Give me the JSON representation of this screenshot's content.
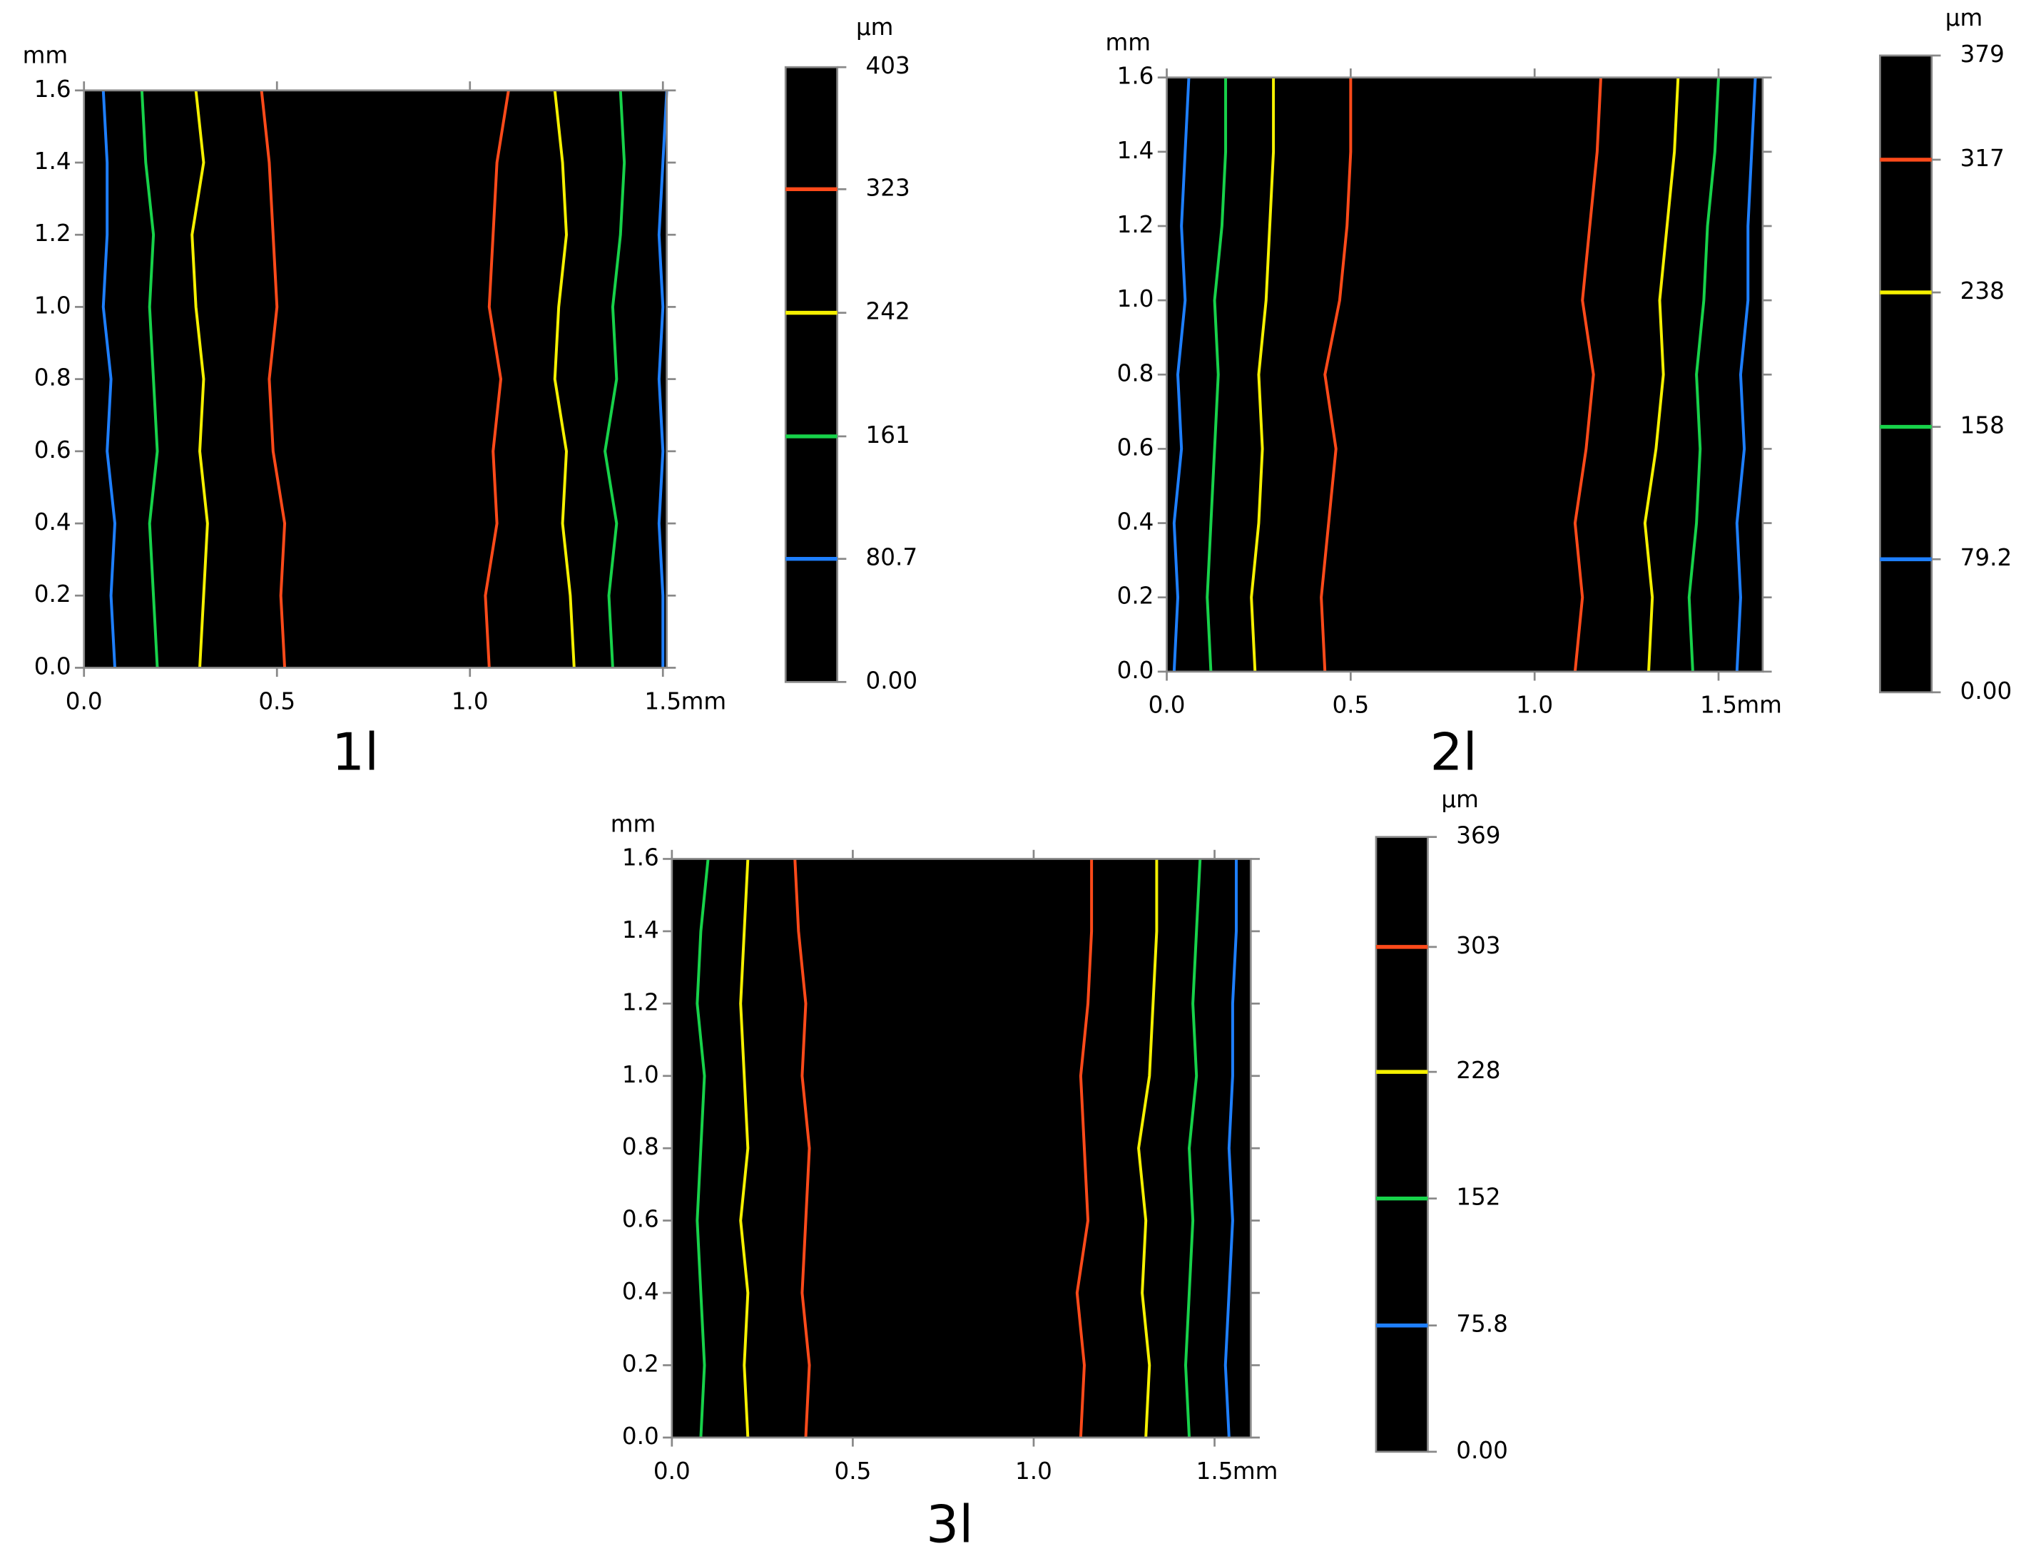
{
  "chart_data": [
    {
      "type": "contour",
      "title": "1l",
      "xlabel": "mm",
      "ylabel": "mm",
      "xlim": [
        0,
        1.51
      ],
      "ylim": [
        0,
        1.6
      ],
      "xticks": [
        {
          "value": 0,
          "label": "0.0"
        },
        0.5,
        {
          "value": 1,
          "label": "1.0"
        },
        1.5
      ],
      "yticks": [
        {
          "value": 0,
          "label": "0.0"
        },
        0.2,
        0.4,
        0.6,
        0.8,
        {
          "value": 1,
          "label": "1.0"
        },
        1.2,
        1.4,
        1.6
      ],
      "colorbar": {
        "label": "µm",
        "clim": [
          0,
          403
        ],
        "ticks": [
          {
            "value": 0,
            "label": "0.00"
          },
          80.7,
          161,
          242,
          323,
          403
        ],
        "tick_colors": [
          null,
          "#1e7fff",
          "#17d24a",
          "#f5f000",
          "#ff4a1a",
          null
        ]
      },
      "contours": [
        {
          "color": "#1e7fff",
          "x": [
            0.08,
            0.07,
            0.08,
            0.06,
            0.07,
            0.05,
            0.06,
            0.06,
            0.05
          ],
          "y": [
            0,
            0.2,
            0.4,
            0.6,
            0.8,
            1,
            1.2,
            1.4,
            1.6
          ]
        },
        {
          "color": "#17d24a",
          "x": [
            0.19,
            0.18,
            0.17,
            0.19,
            0.18,
            0.17,
            0.18,
            0.16,
            0.15
          ],
          "y": [
            0,
            0.2,
            0.4,
            0.6,
            0.8,
            1,
            1.2,
            1.4,
            1.6
          ]
        },
        {
          "color": "#f5f000",
          "x": [
            0.3,
            0.31,
            0.32,
            0.3,
            0.31,
            0.29,
            0.28,
            0.31,
            0.29
          ],
          "y": [
            0,
            0.2,
            0.4,
            0.6,
            0.8,
            1,
            1.2,
            1.4,
            1.6
          ]
        },
        {
          "color": "#ff4a1a",
          "x": [
            0.52,
            0.51,
            0.52,
            0.49,
            0.48,
            0.5,
            0.49,
            0.48,
            0.46
          ],
          "y": [
            0,
            0.2,
            0.4,
            0.6,
            0.8,
            1,
            1.2,
            1.4,
            1.6
          ]
        },
        {
          "color": "#ff4a1a",
          "x": [
            1.05,
            1.04,
            1.07,
            1.06,
            1.08,
            1.05,
            1.06,
            1.07,
            1.1
          ],
          "y": [
            0,
            0.2,
            0.4,
            0.6,
            0.8,
            1,
            1.2,
            1.4,
            1.6
          ]
        },
        {
          "color": "#f5f000",
          "x": [
            1.27,
            1.26,
            1.24,
            1.25,
            1.22,
            1.23,
            1.25,
            1.24,
            1.22
          ],
          "y": [
            0,
            0.2,
            0.4,
            0.6,
            0.8,
            1,
            1.2,
            1.4,
            1.6
          ]
        },
        {
          "color": "#17d24a",
          "x": [
            1.37,
            1.36,
            1.38,
            1.35,
            1.38,
            1.37,
            1.39,
            1.4,
            1.39
          ],
          "y": [
            0,
            0.2,
            0.4,
            0.6,
            0.8,
            1,
            1.2,
            1.4,
            1.6
          ]
        },
        {
          "color": "#1e7fff",
          "x": [
            1.5,
            1.5,
            1.49,
            1.5,
            1.49,
            1.5,
            1.49,
            1.5,
            1.51
          ],
          "y": [
            0,
            0.2,
            0.4,
            0.6,
            0.8,
            1,
            1.2,
            1.4,
            1.6
          ]
        }
      ]
    },
    {
      "type": "contour",
      "title": "2l",
      "xlabel": "mm",
      "ylabel": "mm",
      "xlim": [
        0,
        1.62
      ],
      "ylim": [
        0,
        1.6
      ],
      "xticks": [
        {
          "value": 0,
          "label": "0.0"
        },
        0.5,
        {
          "value": 1,
          "label": "1.0"
        },
        1.5
      ],
      "yticks": [
        {
          "value": 0,
          "label": "0.0"
        },
        0.2,
        0.4,
        0.6,
        0.8,
        {
          "value": 1,
          "label": "1.0"
        },
        1.2,
        1.4,
        1.6
      ],
      "colorbar": {
        "label": "µm",
        "clim": [
          0,
          379
        ],
        "ticks": [
          {
            "value": 0,
            "label": "0.00"
          },
          79.2,
          158,
          238,
          317,
          379
        ],
        "tick_colors": [
          null,
          "#1e7fff",
          "#17d24a",
          "#f5f000",
          "#ff4a1a",
          null
        ]
      },
      "contours": [
        {
          "color": "#1e7fff",
          "x": [
            0.02,
            0.03,
            0.02,
            0.04,
            0.03,
            0.05,
            0.04,
            0.05,
            0.06
          ],
          "y": [
            0,
            0.2,
            0.4,
            0.6,
            0.8,
            1,
            1.2,
            1.4,
            1.6
          ]
        },
        {
          "color": "#17d24a",
          "x": [
            0.12,
            0.11,
            0.12,
            0.13,
            0.14,
            0.13,
            0.15,
            0.16,
            0.16
          ],
          "y": [
            0,
            0.2,
            0.4,
            0.6,
            0.8,
            1,
            1.2,
            1.4,
            1.6
          ]
        },
        {
          "color": "#f5f000",
          "x": [
            0.24,
            0.23,
            0.25,
            0.26,
            0.25,
            0.27,
            0.28,
            0.29,
            0.29
          ],
          "y": [
            0,
            0.2,
            0.4,
            0.6,
            0.8,
            1,
            1.2,
            1.4,
            1.6
          ]
        },
        {
          "color": "#ff4a1a",
          "x": [
            0.43,
            0.42,
            0.44,
            0.46,
            0.43,
            0.47,
            0.49,
            0.5,
            0.5
          ],
          "y": [
            0,
            0.2,
            0.4,
            0.6,
            0.8,
            1,
            1.2,
            1.4,
            1.6
          ]
        },
        {
          "color": "#ff4a1a",
          "x": [
            1.11,
            1.13,
            1.11,
            1.14,
            1.16,
            1.13,
            1.15,
            1.17,
            1.18
          ],
          "y": [
            0,
            0.2,
            0.4,
            0.6,
            0.8,
            1,
            1.2,
            1.4,
            1.6
          ]
        },
        {
          "color": "#f5f000",
          "x": [
            1.31,
            1.32,
            1.3,
            1.33,
            1.35,
            1.34,
            1.36,
            1.38,
            1.39
          ],
          "y": [
            0,
            0.2,
            0.4,
            0.6,
            0.8,
            1,
            1.2,
            1.4,
            1.6
          ]
        },
        {
          "color": "#17d24a",
          "x": [
            1.43,
            1.42,
            1.44,
            1.45,
            1.44,
            1.46,
            1.47,
            1.49,
            1.5
          ],
          "y": [
            0,
            0.2,
            0.4,
            0.6,
            0.8,
            1,
            1.2,
            1.4,
            1.6
          ]
        },
        {
          "color": "#1e7fff",
          "x": [
            1.55,
            1.56,
            1.55,
            1.57,
            1.56,
            1.58,
            1.58,
            1.59,
            1.6
          ],
          "y": [
            0,
            0.2,
            0.4,
            0.6,
            0.8,
            1,
            1.2,
            1.4,
            1.6
          ]
        }
      ]
    },
    {
      "type": "contour",
      "title": "3l",
      "xlabel": "mm",
      "ylabel": "mm",
      "xlim": [
        0,
        1.6
      ],
      "ylim": [
        0,
        1.6
      ],
      "xticks": [
        {
          "value": 0,
          "label": "0.0"
        },
        0.5,
        {
          "value": 1,
          "label": "1.0"
        },
        1.5
      ],
      "yticks": [
        {
          "value": 0,
          "label": "0.0"
        },
        0.2,
        0.4,
        0.6,
        0.8,
        {
          "value": 1,
          "label": "1.0"
        },
        1.2,
        1.4,
        1.6
      ],
      "colorbar": {
        "label": "µm",
        "clim": [
          0,
          369
        ],
        "ticks": [
          {
            "value": 0,
            "label": "0.00"
          },
          75.8,
          152,
          228,
          303,
          369
        ],
        "tick_colors": [
          null,
          "#1e7fff",
          "#17d24a",
          "#f5f000",
          "#ff4a1a",
          null
        ]
      },
      "contours": [
        {
          "color": "#17d24a",
          "x": [
            0.08,
            0.09,
            0.08,
            0.07,
            0.08,
            0.09,
            0.07,
            0.08,
            0.1
          ],
          "y": [
            0,
            0.2,
            0.4,
            0.6,
            0.8,
            1,
            1.2,
            1.4,
            1.6
          ]
        },
        {
          "color": "#f5f000",
          "x": [
            0.21,
            0.2,
            0.21,
            0.19,
            0.21,
            0.2,
            0.19,
            0.2,
            0.21
          ],
          "y": [
            0,
            0.2,
            0.4,
            0.6,
            0.8,
            1,
            1.2,
            1.4,
            1.6
          ]
        },
        {
          "color": "#ff4a1a",
          "x": [
            0.37,
            0.38,
            0.36,
            0.37,
            0.38,
            0.36,
            0.37,
            0.35,
            0.34
          ],
          "y": [
            0,
            0.2,
            0.4,
            0.6,
            0.8,
            1,
            1.2,
            1.4,
            1.6
          ]
        },
        {
          "color": "#ff4a1a",
          "x": [
            1.13,
            1.14,
            1.12,
            1.15,
            1.14,
            1.13,
            1.15,
            1.16,
            1.16
          ],
          "y": [
            0,
            0.2,
            0.4,
            0.6,
            0.8,
            1,
            1.2,
            1.4,
            1.6
          ]
        },
        {
          "color": "#f5f000",
          "x": [
            1.31,
            1.32,
            1.3,
            1.31,
            1.29,
            1.32,
            1.33,
            1.34,
            1.34
          ],
          "y": [
            0,
            0.2,
            0.4,
            0.6,
            0.8,
            1,
            1.2,
            1.4,
            1.6
          ]
        },
        {
          "color": "#17d24a",
          "x": [
            1.43,
            1.42,
            1.43,
            1.44,
            1.43,
            1.45,
            1.44,
            1.45,
            1.46
          ],
          "y": [
            0,
            0.2,
            0.4,
            0.6,
            0.8,
            1,
            1.2,
            1.4,
            1.6
          ]
        },
        {
          "color": "#1e7fff",
          "x": [
            1.54,
            1.53,
            1.54,
            1.55,
            1.54,
            1.55,
            1.55,
            1.56,
            1.56
          ],
          "y": [
            0,
            0.2,
            0.4,
            0.6,
            0.8,
            1,
            1.2,
            1.4,
            1.6
          ]
        }
      ]
    }
  ]
}
